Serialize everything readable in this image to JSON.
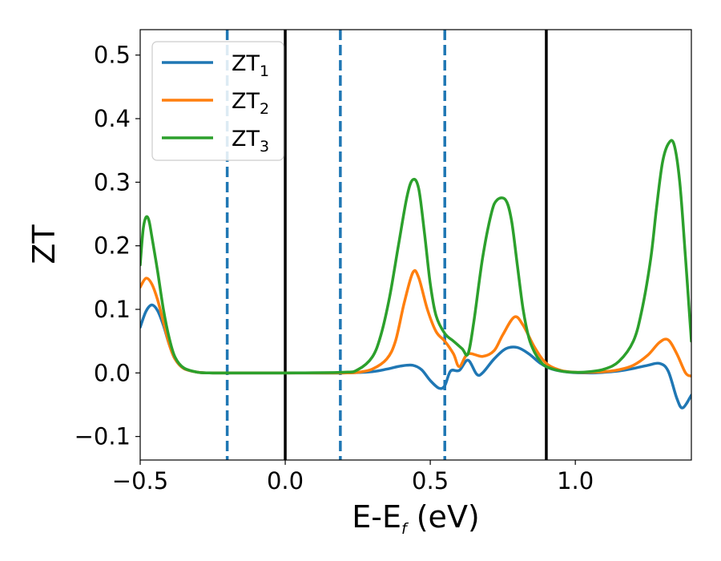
{
  "chart_data": {
    "type": "line",
    "title": "",
    "xlabel": {
      "main": "E-E",
      "sub": "f",
      "unit": " (eV)"
    },
    "ylabel": "ZT",
    "xlim": [
      -0.5,
      1.4
    ],
    "ylim": [
      -0.137,
      0.54
    ],
    "xticks": [
      {
        "value": -0.5,
        "label": "−0.5"
      },
      {
        "value": 0.0,
        "label": "0.0"
      },
      {
        "value": 0.5,
        "label": "0.5"
      },
      {
        "value": 1.0,
        "label": "1.0"
      }
    ],
    "yticks": [
      {
        "value": -0.1,
        "label": "−0.1"
      },
      {
        "value": 0.0,
        "label": "0.0"
      },
      {
        "value": 0.1,
        "label": "0.1"
      },
      {
        "value": 0.2,
        "label": "0.2"
      },
      {
        "value": 0.3,
        "label": "0.3"
      },
      {
        "value": 0.4,
        "label": "0.4"
      },
      {
        "value": 0.5,
        "label": "0.5"
      }
    ],
    "grid": false,
    "legend_position": "top-left",
    "vertical_lines": [
      {
        "x": -0.2,
        "style": "dashed",
        "color": "#1f77b4"
      },
      {
        "x": 0.0,
        "style": "solid",
        "color": "#000000"
      },
      {
        "x": 0.19,
        "style": "dashed",
        "color": "#1f77b4"
      },
      {
        "x": 0.55,
        "style": "dashed",
        "color": "#1f77b4"
      },
      {
        "x": 0.9,
        "style": "solid",
        "color": "#000000"
      }
    ],
    "series": [
      {
        "name": "ZT",
        "sub": "1",
        "color": "#1f77b4",
        "x": [
          -0.5,
          -0.48,
          -0.46,
          -0.44,
          -0.42,
          -0.4,
          -0.38,
          -0.35,
          -0.3,
          -0.25,
          -0.2,
          0.0,
          0.2,
          0.3,
          0.35,
          0.4,
          0.44,
          0.47,
          0.5,
          0.53,
          0.55,
          0.57,
          0.6,
          0.63,
          0.66,
          0.68,
          0.72,
          0.76,
          0.8,
          0.84,
          0.88,
          0.92,
          0.98,
          1.05,
          1.1,
          1.15,
          1.2,
          1.25,
          1.29,
          1.32,
          1.35,
          1.37,
          1.4
        ],
        "y": [
          0.072,
          0.097,
          0.107,
          0.098,
          0.075,
          0.045,
          0.022,
          0.007,
          0.001,
          0.0,
          0.0,
          0.0,
          0.0,
          0.002,
          0.006,
          0.011,
          0.012,
          0.005,
          -0.012,
          -0.024,
          -0.02,
          0.003,
          0.004,
          0.02,
          -0.002,
          0.0,
          0.022,
          0.038,
          0.04,
          0.03,
          0.015,
          0.006,
          0.001,
          0.0,
          0.001,
          0.003,
          0.007,
          0.012,
          0.015,
          0.003,
          -0.04,
          -0.055,
          -0.035
        ]
      },
      {
        "name": "ZT",
        "sub": "2",
        "color": "#ff7f0e",
        "x": [
          -0.5,
          -0.48,
          -0.46,
          -0.44,
          -0.42,
          -0.4,
          -0.38,
          -0.35,
          -0.3,
          -0.25,
          -0.2,
          0.0,
          0.2,
          0.25,
          0.3,
          0.35,
          0.38,
          0.41,
          0.44,
          0.46,
          0.49,
          0.52,
          0.55,
          0.58,
          0.6,
          0.63,
          0.68,
          0.72,
          0.75,
          0.79,
          0.82,
          0.86,
          0.9,
          0.95,
          1.0,
          1.05,
          1.1,
          1.15,
          1.2,
          1.25,
          1.29,
          1.32,
          1.35,
          1.38,
          1.4
        ],
        "y": [
          0.135,
          0.149,
          0.14,
          0.115,
          0.08,
          0.045,
          0.022,
          0.007,
          0.001,
          0.0,
          0.0,
          0.0,
          0.0,
          0.001,
          0.006,
          0.022,
          0.05,
          0.11,
          0.158,
          0.15,
          0.1,
          0.065,
          0.05,
          0.03,
          0.01,
          0.03,
          0.026,
          0.035,
          0.06,
          0.088,
          0.075,
          0.04,
          0.015,
          0.004,
          0.001,
          0.001,
          0.002,
          0.005,
          0.012,
          0.028,
          0.048,
          0.052,
          0.03,
          0.0,
          -0.005
        ]
      },
      {
        "name": "ZT",
        "sub": "3",
        "color": "#2ca02c",
        "x": [
          -0.5,
          -0.49,
          -0.48,
          -0.47,
          -0.46,
          -0.44,
          -0.42,
          -0.4,
          -0.38,
          -0.35,
          -0.3,
          -0.25,
          -0.2,
          0.0,
          0.2,
          0.25,
          0.3,
          0.33,
          0.36,
          0.39,
          0.42,
          0.44,
          0.46,
          0.48,
          0.5,
          0.52,
          0.55,
          0.58,
          0.61,
          0.63,
          0.65,
          0.68,
          0.71,
          0.73,
          0.76,
          0.78,
          0.8,
          0.82,
          0.84,
          0.86,
          0.88,
          0.9,
          0.95,
          1.0,
          1.05,
          1.1,
          1.15,
          1.2,
          1.23,
          1.26,
          1.28,
          1.3,
          1.32,
          1.34,
          1.36,
          1.38,
          1.4
        ],
        "y": [
          0.17,
          0.225,
          0.245,
          0.24,
          0.215,
          0.16,
          0.1,
          0.055,
          0.025,
          0.008,
          0.001,
          0.0,
          0.0,
          0.0,
          0.001,
          0.005,
          0.025,
          0.06,
          0.12,
          0.2,
          0.278,
          0.304,
          0.29,
          0.22,
          0.14,
          0.09,
          0.062,
          0.05,
          0.038,
          0.03,
          0.08,
          0.18,
          0.25,
          0.272,
          0.272,
          0.24,
          0.17,
          0.1,
          0.055,
          0.032,
          0.018,
          0.01,
          0.003,
          0.001,
          0.002,
          0.006,
          0.018,
          0.05,
          0.1,
          0.18,
          0.26,
          0.33,
          0.36,
          0.36,
          0.3,
          0.18,
          0.05
        ]
      }
    ]
  }
}
